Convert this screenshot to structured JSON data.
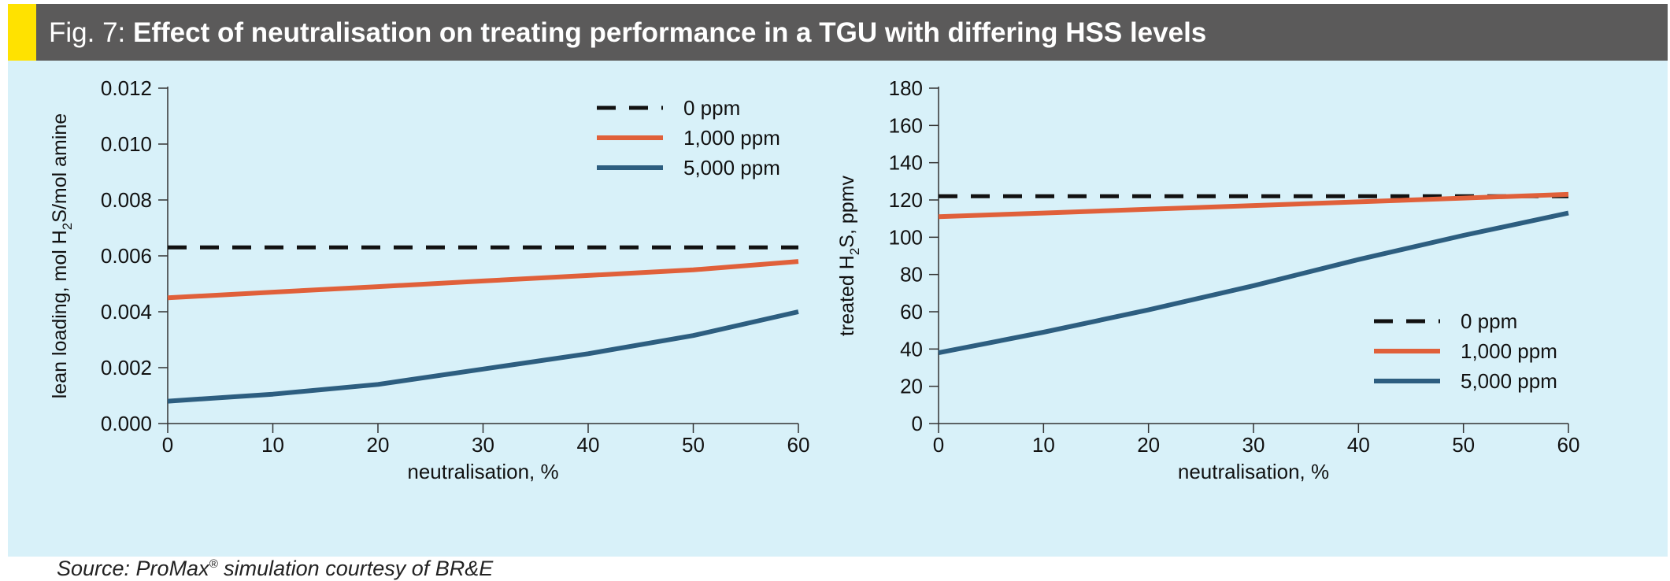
{
  "header": {
    "fig_label": "Fig. 7:",
    "title": "Effect of neutralisation on treating performance in a TGU with differing HSS levels"
  },
  "colors": {
    "header_bg": "#5b5a5a",
    "accent": "#ffe200",
    "panel_bg": "#d8f1f9",
    "series_0ppm": "#111111",
    "series_1000ppm": "#e0603a",
    "series_5000ppm": "#2d5e80"
  },
  "source": {
    "prefix": "Source: ProMax",
    "registered": "®",
    "suffix": " simulation courtesy of BR&E"
  },
  "chart_data": [
    {
      "type": "line",
      "xlabel": "neutralisation, %",
      "ylabel_parts": [
        "lean loading, mol H",
        "2",
        "S/mol amine"
      ],
      "x_ticks": [
        0,
        10,
        20,
        30,
        40,
        50,
        60
      ],
      "y_ticks": [
        0.0,
        0.002,
        0.004,
        0.006,
        0.008,
        0.01,
        0.012
      ],
      "y_decimals": 3,
      "xlim": [
        0,
        60
      ],
      "ylim": [
        0,
        0.012
      ],
      "legend_position": "top-right",
      "series": [
        {
          "name": "0 ppm",
          "style": "dashed",
          "x": [
            0,
            10,
            20,
            30,
            40,
            50,
            60
          ],
          "y": [
            0.0063,
            0.0063,
            0.0063,
            0.0063,
            0.0063,
            0.0063,
            0.0063
          ]
        },
        {
          "name": "1,000 ppm",
          "style": "solid",
          "x": [
            0,
            10,
            20,
            30,
            40,
            50,
            60
          ],
          "y": [
            0.0045,
            0.0047,
            0.0049,
            0.0051,
            0.0053,
            0.0055,
            0.0058
          ]
        },
        {
          "name": "5,000 ppm",
          "style": "solid",
          "x": [
            0,
            10,
            20,
            30,
            40,
            50,
            60
          ],
          "y": [
            0.0008,
            0.00105,
            0.0014,
            0.00195,
            0.0025,
            0.00315,
            0.004
          ]
        }
      ]
    },
    {
      "type": "line",
      "xlabel": "neutralisation, %",
      "ylabel_parts": [
        "treated H",
        "2",
        "S, ppmv"
      ],
      "x_ticks": [
        0,
        10,
        20,
        30,
        40,
        50,
        60
      ],
      "y_ticks": [
        0,
        20,
        40,
        60,
        80,
        100,
        120,
        140,
        160,
        180
      ],
      "y_decimals": 0,
      "xlim": [
        0,
        60
      ],
      "ylim": [
        0,
        180
      ],
      "legend_position": "bottom-right",
      "series": [
        {
          "name": "0 ppm",
          "style": "dashed",
          "x": [
            0,
            10,
            20,
            30,
            40,
            50,
            60
          ],
          "y": [
            122,
            122,
            122,
            122,
            122,
            122,
            122
          ]
        },
        {
          "name": "1,000 ppm",
          "style": "solid",
          "x": [
            0,
            10,
            20,
            30,
            40,
            50,
            60
          ],
          "y": [
            111,
            113,
            115,
            117,
            119,
            121,
            123
          ]
        },
        {
          "name": "5,000 ppm",
          "style": "solid",
          "x": [
            0,
            10,
            20,
            30,
            40,
            50,
            60
          ],
          "y": [
            38,
            49,
            61,
            74,
            88,
            101,
            113
          ]
        }
      ]
    }
  ]
}
